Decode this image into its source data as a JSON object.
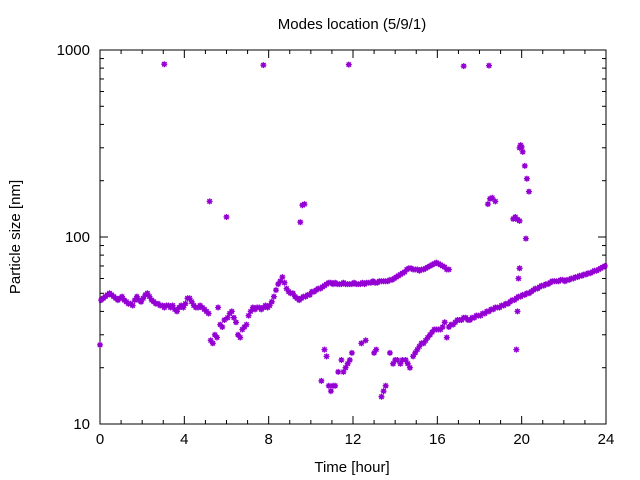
{
  "chart_data": {
    "type": "scatter",
    "title": "Modes location (5/9/1)",
    "xlabel": "Time [hour]",
    "ylabel": "Particle size [nm]",
    "xlim": [
      0,
      24
    ],
    "ylim": [
      10,
      1000
    ],
    "yscale": "log",
    "xticks": [
      "0",
      "4",
      "8",
      "12",
      "16",
      "20",
      "24"
    ],
    "yticks": [
      "10",
      "100",
      "1000"
    ],
    "grid": false,
    "color": "#9400d3",
    "points": [
      [
        0.0,
        26.5
      ],
      [
        0.05,
        46
      ],
      [
        0.15,
        47
      ],
      [
        0.25,
        48
      ],
      [
        0.35,
        49
      ],
      [
        0.45,
        50
      ],
      [
        0.55,
        49
      ],
      [
        0.65,
        48
      ],
      [
        0.75,
        47
      ],
      [
        0.85,
        46
      ],
      [
        0.95,
        47
      ],
      [
        1.05,
        48
      ],
      [
        1.15,
        46
      ],
      [
        1.25,
        45
      ],
      [
        1.35,
        44
      ],
      [
        1.45,
        44
      ],
      [
        1.55,
        43
      ],
      [
        1.65,
        46
      ],
      [
        1.75,
        48
      ],
      [
        1.85,
        46
      ],
      [
        1.95,
        45
      ],
      [
        2.05,
        47
      ],
      [
        2.15,
        49
      ],
      [
        2.25,
        50
      ],
      [
        2.35,
        48
      ],
      [
        2.45,
        46
      ],
      [
        2.55,
        45
      ],
      [
        2.65,
        44
      ],
      [
        2.75,
        44
      ],
      [
        2.85,
        43
      ],
      [
        2.95,
        43
      ],
      [
        3.05,
        42
      ],
      [
        3.15,
        43
      ],
      [
        3.25,
        43
      ],
      [
        3.35,
        42
      ],
      [
        3.45,
        43
      ],
      [
        3.55,
        41
      ],
      [
        3.65,
        40
      ],
      [
        3.75,
        42
      ],
      [
        3.85,
        43
      ],
      [
        3.95,
        42
      ],
      [
        4.05,
        44
      ],
      [
        4.15,
        47
      ],
      [
        4.25,
        47
      ],
      [
        4.35,
        45
      ],
      [
        4.45,
        43
      ],
      [
        4.55,
        42
      ],
      [
        4.65,
        42
      ],
      [
        4.75,
        43
      ],
      [
        4.85,
        42
      ],
      [
        4.95,
        41
      ],
      [
        5.05,
        40
      ],
      [
        5.15,
        39
      ],
      [
        5.2,
        155
      ],
      [
        5.25,
        28
      ],
      [
        5.35,
        27
      ],
      [
        5.45,
        30
      ],
      [
        5.55,
        29
      ],
      [
        5.6,
        42
      ],
      [
        5.7,
        34
      ],
      [
        5.8,
        33
      ],
      [
        5.9,
        36
      ],
      [
        6.0,
        128
      ],
      [
        6.05,
        37
      ],
      [
        6.15,
        39
      ],
      [
        6.25,
        40
      ],
      [
        6.35,
        37
      ],
      [
        6.45,
        35
      ],
      [
        6.55,
        30
      ],
      [
        6.65,
        29
      ],
      [
        6.75,
        32
      ],
      [
        6.85,
        33
      ],
      [
        6.95,
        34
      ],
      [
        7.05,
        38
      ],
      [
        7.15,
        40
      ],
      [
        7.25,
        42
      ],
      [
        7.35,
        41
      ],
      [
        7.45,
        42
      ],
      [
        7.55,
        42
      ],
      [
        7.65,
        41
      ],
      [
        7.75,
        42
      ],
      [
        7.85,
        43
      ],
      [
        7.95,
        42
      ],
      [
        8.05,
        43
      ],
      [
        8.15,
        45
      ],
      [
        8.25,
        48
      ],
      [
        8.35,
        52
      ],
      [
        8.45,
        56
      ],
      [
        8.55,
        58
      ],
      [
        8.65,
        61
      ],
      [
        8.75,
        57
      ],
      [
        8.85,
        53
      ],
      [
        8.95,
        51
      ],
      [
        9.05,
        50
      ],
      [
        9.15,
        50
      ],
      [
        9.25,
        48
      ],
      [
        9.35,
        47
      ],
      [
        9.5,
        120
      ],
      [
        9.6,
        148
      ],
      [
        9.7,
        150
      ],
      [
        9.45,
        46
      ],
      [
        9.55,
        47
      ],
      [
        9.65,
        48
      ],
      [
        9.75,
        48
      ],
      [
        9.85,
        49
      ],
      [
        9.95,
        49
      ],
      [
        10.05,
        51
      ],
      [
        10.15,
        51
      ],
      [
        10.25,
        52
      ],
      [
        10.35,
        53
      ],
      [
        10.45,
        53
      ],
      [
        10.55,
        54
      ],
      [
        10.65,
        55
      ],
      [
        10.75,
        56
      ],
      [
        10.85,
        57
      ],
      [
        10.95,
        57
      ],
      [
        11.05,
        56
      ],
      [
        11.15,
        57
      ],
      [
        11.25,
        56
      ],
      [
        11.35,
        56
      ],
      [
        11.45,
        56
      ],
      [
        11.55,
        57
      ],
      [
        11.65,
        56
      ],
      [
        11.75,
        56
      ],
      [
        11.85,
        56
      ],
      [
        11.95,
        56
      ],
      [
        12.05,
        57
      ],
      [
        12.15,
        56
      ],
      [
        12.25,
        56
      ],
      [
        12.35,
        56
      ],
      [
        12.45,
        57
      ],
      [
        12.55,
        56
      ],
      [
        12.65,
        57
      ],
      [
        12.75,
        57
      ],
      [
        12.85,
        57
      ],
      [
        12.95,
        58
      ],
      [
        13.05,
        57
      ],
      [
        13.15,
        57
      ],
      [
        13.25,
        58
      ],
      [
        13.35,
        58
      ],
      [
        13.45,
        58
      ],
      [
        13.55,
        58
      ],
      [
        13.65,
        58
      ],
      [
        13.75,
        59
      ],
      [
        13.85,
        59
      ],
      [
        13.95,
        60
      ],
      [
        14.05,
        61
      ],
      [
        14.15,
        62
      ],
      [
        14.25,
        63
      ],
      [
        14.35,
        64
      ],
      [
        14.45,
        65
      ],
      [
        14.55,
        67
      ],
      [
        14.65,
        68
      ],
      [
        14.75,
        68
      ],
      [
        14.85,
        67
      ],
      [
        14.95,
        67
      ],
      [
        15.05,
        67
      ],
      [
        15.15,
        66
      ],
      [
        15.25,
        67
      ],
      [
        15.35,
        67
      ],
      [
        15.45,
        68
      ],
      [
        15.55,
        69
      ],
      [
        15.65,
        70
      ],
      [
        15.75,
        71
      ],
      [
        15.85,
        72
      ],
      [
        15.95,
        73
      ],
      [
        16.05,
        72
      ],
      [
        16.15,
        71
      ],
      [
        16.25,
        70
      ],
      [
        16.35,
        69
      ],
      [
        16.45,
        67
      ],
      [
        16.55,
        67
      ],
      [
        10.5,
        17
      ],
      [
        10.65,
        25
      ],
      [
        10.75,
        23
      ],
      [
        10.85,
        16
      ],
      [
        10.95,
        15
      ],
      [
        11.05,
        16
      ],
      [
        11.15,
        16
      ],
      [
        11.3,
        19
      ],
      [
        11.45,
        22
      ],
      [
        11.55,
        19
      ],
      [
        11.65,
        20
      ],
      [
        11.75,
        21
      ],
      [
        11.85,
        22
      ],
      [
        11.95,
        24
      ],
      [
        12.4,
        27
      ],
      [
        12.6,
        28
      ],
      [
        13.0,
        24
      ],
      [
        13.1,
        25
      ],
      [
        13.35,
        14
      ],
      [
        13.45,
        15
      ],
      [
        13.55,
        16
      ],
      [
        13.75,
        24
      ],
      [
        13.9,
        21
      ],
      [
        14.0,
        22
      ],
      [
        14.1,
        22
      ],
      [
        14.25,
        21
      ],
      [
        14.35,
        22
      ],
      [
        14.5,
        22
      ],
      [
        14.6,
        21
      ],
      [
        14.7,
        20
      ],
      [
        14.85,
        23
      ],
      [
        14.95,
        24
      ],
      [
        15.05,
        25
      ],
      [
        15.15,
        26
      ],
      [
        15.25,
        27
      ],
      [
        15.35,
        27
      ],
      [
        15.45,
        28
      ],
      [
        15.55,
        29
      ],
      [
        15.65,
        30
      ],
      [
        15.75,
        31
      ],
      [
        15.85,
        32
      ],
      [
        15.95,
        32
      ],
      [
        16.05,
        32
      ],
      [
        16.15,
        32
      ],
      [
        16.25,
        33
      ],
      [
        16.35,
        35
      ],
      [
        16.45,
        29
      ],
      [
        16.55,
        33
      ],
      [
        16.65,
        34
      ],
      [
        16.75,
        34
      ],
      [
        16.85,
        35
      ],
      [
        16.95,
        36
      ],
      [
        17.05,
        36
      ],
      [
        17.15,
        36
      ],
      [
        17.25,
        37
      ],
      [
        17.35,
        37
      ],
      [
        17.45,
        36
      ],
      [
        17.55,
        36
      ],
      [
        17.65,
        37
      ],
      [
        17.75,
        37
      ],
      [
        17.85,
        38
      ],
      [
        17.95,
        38
      ],
      [
        18.05,
        38
      ],
      [
        18.15,
        39
      ],
      [
        18.25,
        39
      ],
      [
        18.35,
        40
      ],
      [
        18.45,
        40
      ],
      [
        18.55,
        41
      ],
      [
        18.65,
        41
      ],
      [
        18.75,
        42
      ],
      [
        18.85,
        42
      ],
      [
        18.95,
        42
      ],
      [
        19.05,
        43
      ],
      [
        19.15,
        43
      ],
      [
        19.25,
        44
      ],
      [
        19.35,
        44
      ],
      [
        19.45,
        45
      ],
      [
        19.55,
        46
      ],
      [
        19.65,
        46
      ],
      [
        19.75,
        47
      ],
      [
        19.85,
        48
      ],
      [
        19.95,
        48
      ],
      [
        20.05,
        49
      ],
      [
        20.15,
        49
      ],
      [
        20.25,
        50
      ],
      [
        20.35,
        50
      ],
      [
        20.45,
        51
      ],
      [
        20.55,
        52
      ],
      [
        20.65,
        53
      ],
      [
        20.75,
        53
      ],
      [
        20.85,
        54
      ],
      [
        20.95,
        55
      ],
      [
        21.05,
        55
      ],
      [
        21.15,
        56
      ],
      [
        21.25,
        56
      ],
      [
        21.35,
        57
      ],
      [
        21.45,
        58
      ],
      [
        21.55,
        58
      ],
      [
        21.65,
        58
      ],
      [
        21.75,
        58
      ],
      [
        21.85,
        59
      ],
      [
        21.95,
        59
      ],
      [
        22.05,
        58
      ],
      [
        22.15,
        59
      ],
      [
        22.25,
        59
      ],
      [
        22.35,
        60
      ],
      [
        22.45,
        60
      ],
      [
        22.55,
        61
      ],
      [
        22.65,
        61
      ],
      [
        22.75,
        62
      ],
      [
        22.85,
        62
      ],
      [
        22.95,
        63
      ],
      [
        23.05,
        63
      ],
      [
        23.15,
        64
      ],
      [
        23.25,
        64
      ],
      [
        23.35,
        65
      ],
      [
        23.45,
        66
      ],
      [
        23.55,
        66
      ],
      [
        23.65,
        67
      ],
      [
        23.75,
        68
      ],
      [
        23.85,
        69
      ],
      [
        23.95,
        70
      ],
      [
        18.4,
        150
      ],
      [
        18.5,
        160
      ],
      [
        18.6,
        162
      ],
      [
        18.75,
        155
      ],
      [
        19.6,
        125
      ],
      [
        19.7,
        128
      ],
      [
        19.8,
        124
      ],
      [
        19.9,
        122
      ],
      [
        19.9,
        300
      ],
      [
        19.95,
        310
      ],
      [
        20.0,
        303
      ],
      [
        20.05,
        285
      ],
      [
        20.15,
        240
      ],
      [
        20.2,
        98
      ],
      [
        20.25,
        205
      ],
      [
        20.35,
        175
      ],
      [
        19.75,
        25
      ],
      [
        19.8,
        40
      ],
      [
        19.85,
        60
      ],
      [
        19.9,
        68
      ],
      [
        3.05,
        840
      ],
      [
        7.75,
        830
      ],
      [
        11.8,
        835
      ],
      [
        17.25,
        820
      ],
      [
        18.45,
        825
      ]
    ]
  }
}
